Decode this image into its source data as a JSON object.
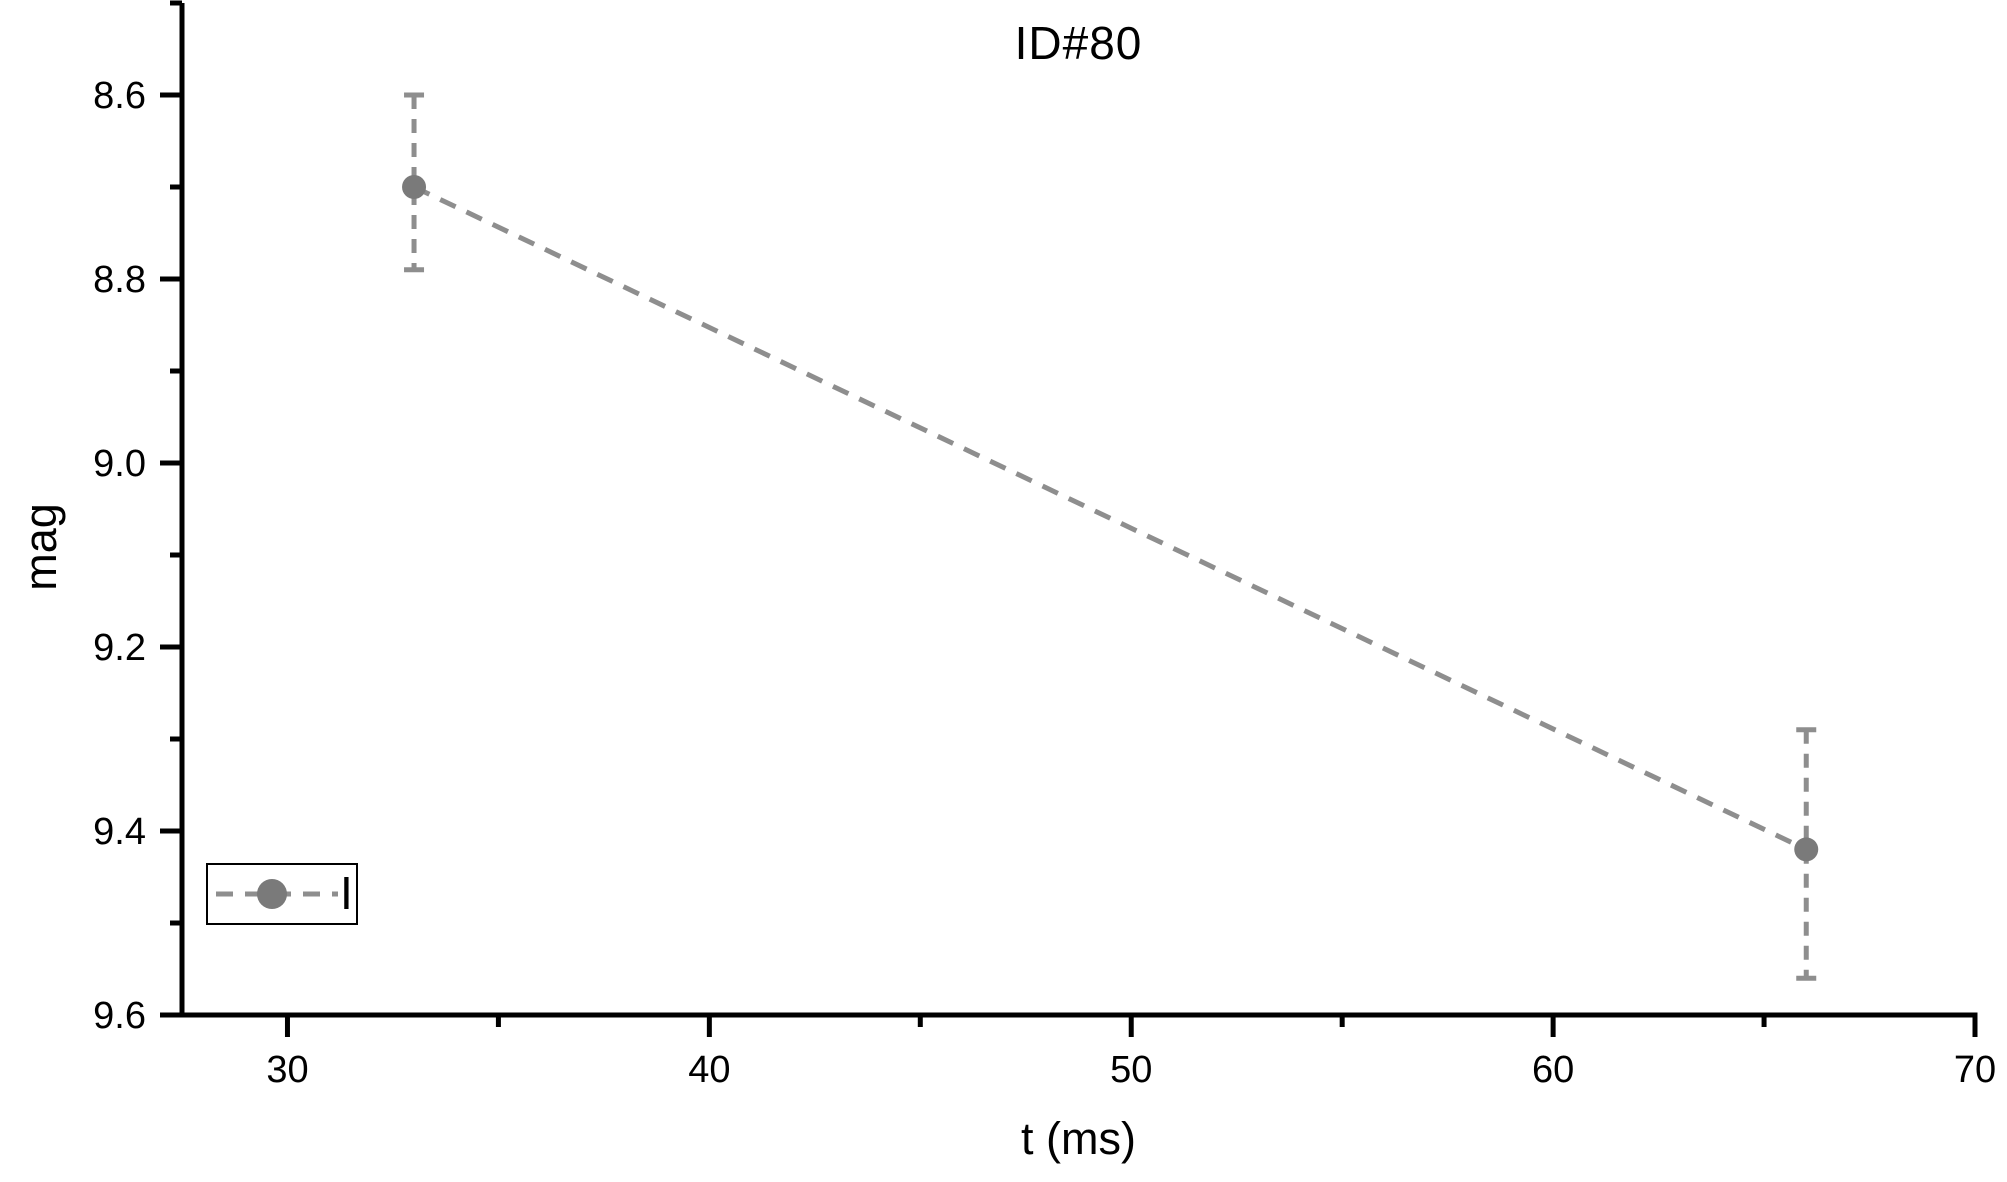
{
  "title": "ID#80",
  "colors": {
    "series_marker": "#7a7a7a",
    "series_line": "#8e8e8e",
    "axis": "#000000",
    "background": "#ffffff"
  },
  "legend": {
    "label": "I",
    "position": "lower-left"
  },
  "chart_data": {
    "type": "line",
    "title": "ID#80",
    "xlabel": "t (ms)",
    "ylabel": "mag",
    "xlim": [
      27.5,
      70
    ],
    "ylim": [
      8.5,
      9.6
    ],
    "y_axis_inverted": true,
    "grid": false,
    "x_major_tick_values": [
      30,
      40,
      50,
      60,
      70
    ],
    "x_major_tick_labels": [
      "30",
      "40",
      "50",
      "60",
      "70"
    ],
    "x_minor_tick_values": [
      35,
      45,
      55,
      65
    ],
    "y_major_tick_values": [
      8.6,
      8.8,
      9.0,
      9.2,
      9.4,
      9.6
    ],
    "y_major_tick_labels": [
      "8.6",
      "8.8",
      "9.0",
      "9.2",
      "9.4",
      "9.6"
    ],
    "y_minor_tick_values": [
      8.5,
      8.7,
      8.9,
      9.1,
      9.3,
      9.5
    ],
    "legend": {
      "label": "I",
      "position": "lower-left"
    },
    "series": [
      {
        "name": "I",
        "marker": "circle",
        "line_style": "dashed",
        "marker_color": "#7a7a7a",
        "line_color": "#8e8e8e",
        "points": [
          {
            "t": 33,
            "mag": 8.7,
            "err_cap_bright_mag": 8.6,
            "err_cap_faint_mag": 8.79
          },
          {
            "t": 66,
            "mag": 9.42,
            "err_cap_bright_mag": 9.29,
            "err_cap_faint_mag": 9.56
          }
        ]
      }
    ]
  }
}
